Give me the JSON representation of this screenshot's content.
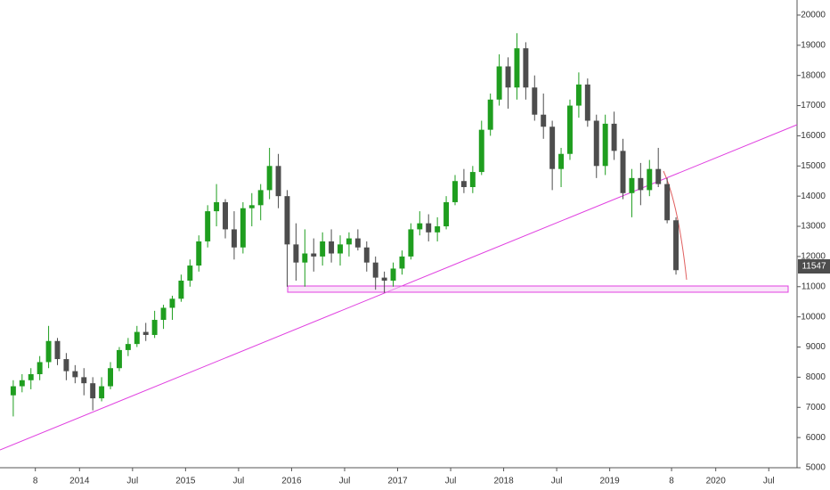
{
  "chart_data": {
    "type": "candlestick",
    "x": [
      "2013-05",
      "2013-06",
      "2013-07",
      "2013-08",
      "2013-09",
      "2013-10",
      "2013-11",
      "2013-12",
      "2014-01",
      "2014-02",
      "2014-03",
      "2014-04",
      "2014-05",
      "2014-06",
      "2014-07",
      "2014-08",
      "2014-09",
      "2014-10",
      "2014-11",
      "2014-12",
      "2015-01",
      "2015-02",
      "2015-03",
      "2015-04",
      "2015-05",
      "2015-06",
      "2015-07",
      "2015-08",
      "2015-09",
      "2015-10",
      "2015-11",
      "2015-12",
      "2016-01",
      "2016-02",
      "2016-03",
      "2016-04",
      "2016-05",
      "2016-06",
      "2016-07",
      "2016-08",
      "2016-09",
      "2016-10",
      "2016-11",
      "2016-12",
      "2017-01",
      "2017-02",
      "2017-03",
      "2017-04",
      "2017-05",
      "2017-06",
      "2017-07",
      "2017-08",
      "2017-09",
      "2017-10",
      "2017-11",
      "2017-12",
      "2018-01",
      "2018-02",
      "2018-03",
      "2018-04",
      "2018-05",
      "2018-06",
      "2018-07",
      "2018-08",
      "2018-09",
      "2018-10",
      "2018-11",
      "2018-12",
      "2019-01",
      "2019-02",
      "2019-03",
      "2019-04",
      "2019-05",
      "2019-06",
      "2019-07",
      "2019-08"
    ],
    "open": [
      7400,
      7700,
      7900,
      8100,
      8500,
      9200,
      8600,
      8200,
      8000,
      7800,
      7300,
      7700,
      8300,
      8900,
      9100,
      9500,
      9400,
      9900,
      10300,
      10600,
      11200,
      11700,
      12500,
      13500,
      13800,
      12900,
      12300,
      13600,
      13700,
      14200,
      15000,
      14000,
      12400,
      11800,
      12100,
      12000,
      12500,
      12100,
      12400,
      12600,
      12300,
      11800,
      11300,
      11200,
      11600,
      12000,
      12900,
      13100,
      12800,
      13000,
      13800,
      14500,
      14300,
      14800,
      16200,
      17200,
      18300,
      17600,
      18900,
      17600,
      16700,
      16300,
      14900,
      15400,
      17000,
      17700,
      16500,
      15000,
      16400,
      15500,
      14100,
      14600,
      14200,
      14900,
      14400,
      13200
    ],
    "high": [
      7900,
      8100,
      8300,
      8700,
      9700,
      9300,
      8800,
      8400,
      8300,
      8000,
      8000,
      8500,
      9000,
      9300,
      9700,
      9800,
      10200,
      10400,
      10700,
      11400,
      11900,
      12700,
      13700,
      14400,
      13900,
      13500,
      13800,
      14100,
      14400,
      15600,
      15400,
      14200,
      13100,
      12900,
      12600,
      12800,
      12900,
      12700,
      12800,
      12900,
      12500,
      12000,
      11500,
      11800,
      12200,
      13100,
      13500,
      13400,
      13300,
      14000,
      14700,
      14900,
      15000,
      16500,
      17400,
      18700,
      18600,
      19400,
      19100,
      18000,
      17400,
      16500,
      15600,
      17200,
      18100,
      17900,
      16700,
      16700,
      16800,
      15900,
      14900,
      15100,
      15200,
      15600,
      14600,
      13300
    ],
    "low": [
      6700,
      7500,
      7600,
      7900,
      8300,
      8400,
      7900,
      7800,
      7400,
      6900,
      7200,
      7600,
      8200,
      8700,
      9000,
      9200,
      9300,
      9600,
      9900,
      10500,
      11000,
      11500,
      12300,
      13000,
      12600,
      11900,
      12100,
      13000,
      13200,
      13900,
      13600,
      11000,
      11200,
      11000,
      11500,
      11700,
      11800,
      11700,
      12000,
      12200,
      11500,
      10900,
      10800,
      11000,
      11400,
      11900,
      12700,
      12500,
      12500,
      12900,
      13700,
      14100,
      14100,
      14700,
      16000,
      17000,
      16900,
      17200,
      17200,
      16500,
      15900,
      14200,
      14300,
      15200,
      16600,
      16300,
      14600,
      14700,
      15200,
      13900,
      13300,
      13700,
      14000,
      14300,
      13100,
      11400
    ],
    "close": [
      7700,
      7900,
      8100,
      8500,
      9200,
      8600,
      8200,
      8000,
      7800,
      7300,
      7700,
      8300,
      8900,
      9100,
      9500,
      9400,
      9900,
      10300,
      10600,
      11200,
      11700,
      12500,
      13500,
      13800,
      12900,
      12300,
      13600,
      13700,
      14200,
      15000,
      14000,
      12400,
      11800,
      12100,
      12000,
      12500,
      12100,
      12400,
      12600,
      12300,
      11800,
      11300,
      11200,
      11600,
      12000,
      12900,
      13100,
      12800,
      13000,
      13800,
      14500,
      14300,
      14800,
      16200,
      17200,
      18300,
      17600,
      18900,
      17600,
      16700,
      16300,
      14900,
      15400,
      17000,
      17700,
      16500,
      15000,
      16400,
      15500,
      14100,
      14600,
      14200,
      14900,
      14400,
      13200,
      11547
    ],
    "up_color": "#1f9e1f",
    "down_color": "#4d4d4d",
    "xlim": [
      "2013-04",
      "2020-10"
    ],
    "xticks": [
      {
        "value": "2013-08",
        "label": "8"
      },
      {
        "value": "2014-01",
        "label": "2014"
      },
      {
        "value": "2014-07",
        "label": "Jul"
      },
      {
        "value": "2015-01",
        "label": "2015"
      },
      {
        "value": "2015-07",
        "label": "Jul"
      },
      {
        "value": "2016-01",
        "label": "2016"
      },
      {
        "value": "2016-07",
        "label": "Jul"
      },
      {
        "value": "2017-01",
        "label": "2017"
      },
      {
        "value": "2017-07",
        "label": "Jul"
      },
      {
        "value": "2018-01",
        "label": "2018"
      },
      {
        "value": "2018-07",
        "label": "Jul"
      },
      {
        "value": "2019-01",
        "label": "2019"
      },
      {
        "value": "2019-08",
        "label": "8"
      },
      {
        "value": "2020-01",
        "label": "2020"
      },
      {
        "value": "2020-07",
        "label": "Jul"
      }
    ],
    "ylim": [
      5000,
      20500
    ],
    "yticks": [
      5000,
      6000,
      7000,
      8000,
      9000,
      10000,
      11000,
      12000,
      13000,
      14000,
      15000,
      16000,
      17000,
      18000,
      19000,
      20000
    ]
  }
}
